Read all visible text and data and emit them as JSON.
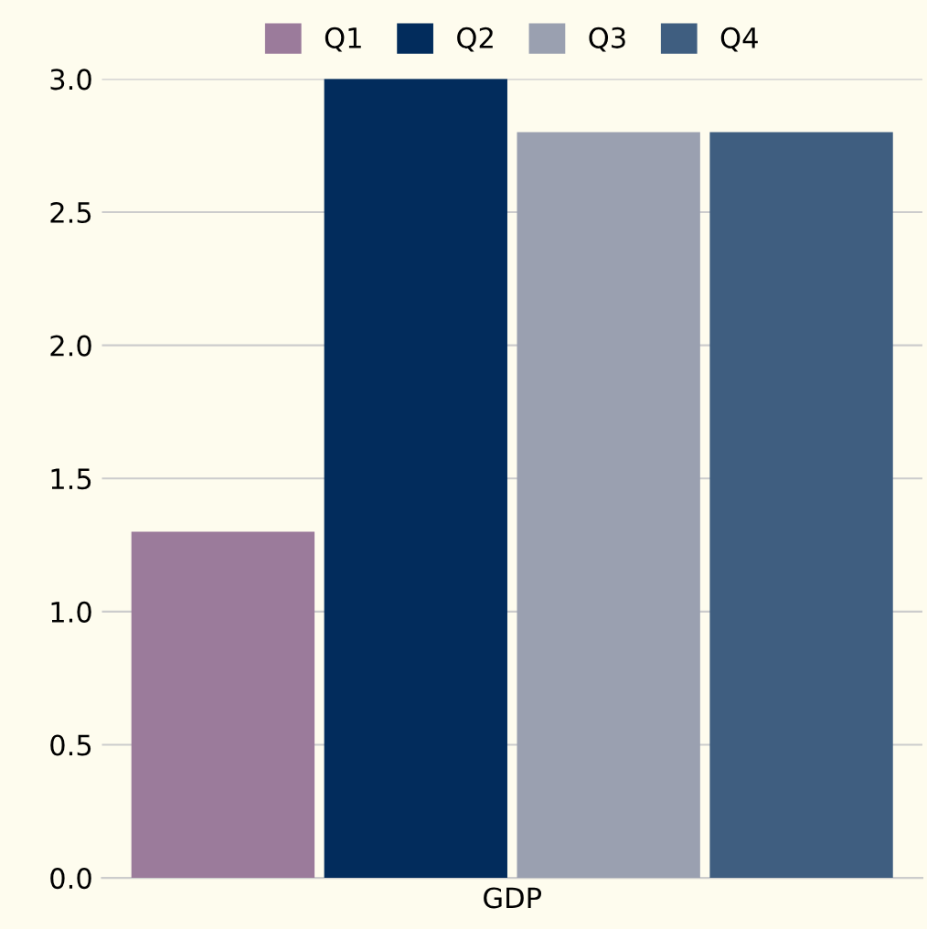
{
  "chart_data": {
    "type": "bar",
    "categories": [
      "GDP"
    ],
    "series": [
      {
        "name": "Q1",
        "color": "#9b7b9b",
        "values": [
          1.3
        ]
      },
      {
        "name": "Q2",
        "color": "#022c5c",
        "values": [
          3.0
        ]
      },
      {
        "name": "Q3",
        "color": "#9aa0b0",
        "values": [
          2.8
        ]
      },
      {
        "name": "Q4",
        "color": "#3f5e80",
        "values": [
          2.8
        ]
      }
    ],
    "ylim": [
      0,
      3.0
    ],
    "yticks": [
      {
        "value": 0,
        "label": "0.0"
      },
      {
        "value": 0.5,
        "label": "0.5"
      },
      {
        "value": 1.0,
        "label": "1.0"
      },
      {
        "value": 1.5,
        "label": "1.5"
      },
      {
        "value": 2.0,
        "label": "2.0"
      },
      {
        "value": 2.5,
        "label": "2.5"
      },
      {
        "value": 3.0,
        "label": "3.0"
      }
    ],
    "grid": "y",
    "legend": "top"
  }
}
